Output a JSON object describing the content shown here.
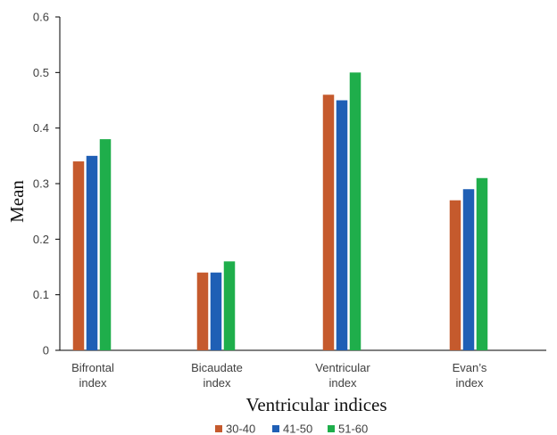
{
  "chart_data": {
    "type": "bar",
    "categories": [
      [
        "Bifrontal",
        "index"
      ],
      [
        "Bicaudate",
        "index"
      ],
      [
        "Ventricular",
        "index"
      ],
      [
        "Evan’s",
        "index"
      ]
    ],
    "series": [
      {
        "name": "30-40",
        "color": "#c55a2d",
        "values": [
          0.34,
          0.14,
          0.46,
          0.27
        ]
      },
      {
        "name": "41-50",
        "color": "#1f5fb5",
        "values": [
          0.35,
          0.14,
          0.45,
          0.29
        ]
      },
      {
        "name": "51-60",
        "color": "#1fae4b",
        "values": [
          0.38,
          0.16,
          0.5,
          0.31
        ]
      }
    ],
    "xlabel": "Ventricular indices",
    "ylabel": "Mean",
    "ylim": [
      0,
      0.6
    ],
    "yticks": [
      "0",
      "0.1",
      "0.2",
      "0.3",
      "0.4",
      "0.5",
      "0.6"
    ],
    "grid": false,
    "legend_position": "bottom"
  }
}
